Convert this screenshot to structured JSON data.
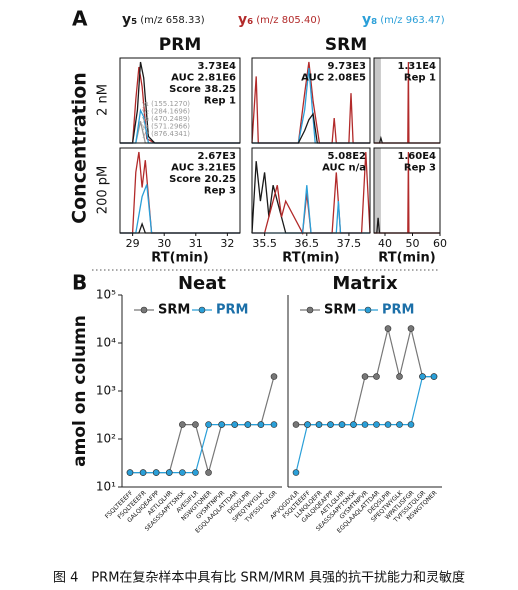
{
  "figure": {
    "panel_a": "A",
    "panel_b": "B",
    "ions": [
      {
        "ion": "y₅",
        "mz": "(m/z 658.33)",
        "color": "#1a1a1a"
      },
      {
        "ion": "y₆",
        "mz": "(m/z 805.40)",
        "color": "#b22a2a"
      },
      {
        "ion": "y₈",
        "mz": "(m/z 963.47)",
        "color": "#2a9fd8"
      }
    ],
    "col_prm": "PRM",
    "col_srm": "SRM",
    "ylabel": "Concentration",
    "row_1": "2 nM",
    "row_2": "200 pM",
    "caption": "图 4　PRM在复杂样本中具有比 SRM/MRM 具强的抗干扰能力和灵敏度"
  },
  "chart_data": [
    {
      "type": "chromatogram",
      "xlim": [
        28.6,
        32.4
      ],
      "ylim": [
        0,
        37300
      ],
      "annotations": [
        "3.73E4",
        "AUC 2.81E6",
        "Score 38.25",
        "Rep 1"
      ],
      "ion_list": [
        "y₁ (155.1270)",
        "y₂ (284.1696)",
        "y₃ (470.2489)",
        "y₄ (571.2966)",
        "y₇ (876.4341)"
      ],
      "series": [
        {
          "color": "#999999",
          "x": [
            28.6,
            29.1,
            29.25,
            29.4,
            32.4
          ],
          "values": [
            0,
            0,
            10000,
            0,
            0
          ]
        },
        {
          "color": "#b22a2a",
          "x": [
            28.6,
            29.0,
            29.1,
            29.2,
            29.3,
            29.45,
            29.7,
            32.4
          ],
          "values": [
            0,
            0,
            20000,
            35000,
            26000,
            2000,
            0,
            0
          ]
        },
        {
          "color": "#1a1a1a",
          "x": [
            28.6,
            29.0,
            29.15,
            29.25,
            29.35,
            29.5,
            29.7,
            32.4
          ],
          "values": [
            0,
            0,
            15000,
            37300,
            30000,
            3000,
            0,
            0
          ]
        },
        {
          "color": "#2a9fd8",
          "x": [
            28.6,
            29.1,
            29.25,
            29.35,
            29.5,
            32.4
          ],
          "values": [
            0,
            0,
            15000,
            12000,
            0,
            0
          ]
        }
      ]
    },
    {
      "type": "chromatogram",
      "xlim": [
        28.6,
        32.4
      ],
      "ylim": [
        0,
        2670
      ],
      "xticks": [
        29,
        30,
        31,
        32
      ],
      "xlabel": "RT(min)",
      "annotations": [
        "2.67E3",
        "AUC 3.21E5",
        "Score 20.25",
        "Rep 3"
      ],
      "series": [
        {
          "color": "#b22a2a",
          "x": [
            28.6,
            29.0,
            29.1,
            29.2,
            29.3,
            29.4,
            29.6,
            32.4
          ],
          "values": [
            0,
            0,
            2000,
            2670,
            1500,
            2400,
            0,
            0
          ]
        },
        {
          "color": "#1a1a1a",
          "x": [
            28.6,
            29.2,
            29.3,
            29.4,
            32.4
          ],
          "values": [
            0,
            0,
            300,
            0,
            0
          ]
        },
        {
          "color": "#2a9fd8",
          "x": [
            28.6,
            29.1,
            29.3,
            29.45,
            29.6,
            32.4
          ],
          "values": [
            0,
            0,
            1200,
            1600,
            0,
            0
          ]
        }
      ]
    },
    {
      "type": "chromatogram",
      "xlim": [
        35.2,
        38.0
      ],
      "ylim": [
        0,
        9730
      ],
      "annotations": [
        "9.73E3",
        "AUC 2.08E5"
      ],
      "series": [
        {
          "color": "#b22a2a",
          "x": [
            35.2,
            35.3,
            35.35,
            35.5,
            36.3,
            36.45,
            36.55,
            36.65,
            36.8,
            37.1,
            37.15,
            37.2,
            37.5,
            37.55,
            37.6,
            38.0
          ],
          "values": [
            0,
            8000,
            0,
            0,
            0,
            6000,
            9730,
            5000,
            0,
            0,
            3000,
            0,
            0,
            6000,
            0,
            0
          ]
        },
        {
          "color": "#2a9fd8",
          "x": [
            35.2,
            36.3,
            36.45,
            36.55,
            36.7,
            38.0
          ],
          "values": [
            0,
            0,
            4000,
            9000,
            0,
            0
          ]
        },
        {
          "color": "#1a1a1a",
          "x": [
            35.2,
            36.3,
            36.45,
            36.55,
            36.65,
            36.75,
            38.0
          ],
          "values": [
            0,
            0,
            1500,
            2800,
            3500,
            0,
            0
          ]
        }
      ]
    },
    {
      "type": "chromatogram",
      "xlim": [
        36,
        60
      ],
      "ylim": [
        0,
        13100
      ],
      "highlight_x": [
        36,
        38.5
      ],
      "annotations": [
        "1.31E4",
        "Rep 1"
      ],
      "series": [
        {
          "color": "#1a1a1a",
          "x": [
            36,
            38,
            38.5,
            39,
            60
          ],
          "values": [
            0,
            0,
            800,
            0,
            0
          ]
        },
        {
          "color": "#b22a2a",
          "x": [
            36,
            48.3,
            48.5,
            48.7,
            60
          ],
          "values": [
            0,
            0,
            13100,
            0,
            0
          ]
        }
      ]
    },
    {
      "type": "chromatogram",
      "xlim": [
        35.2,
        38.0
      ],
      "ylim": [
        0,
        508
      ],
      "xticks": [
        35.5,
        36.5,
        37.5
      ],
      "xlabel": "RT(min)",
      "annotations": [
        "5.08E2",
        "AUC n/a"
      ],
      "series": [
        {
          "color": "#1a1a1a",
          "x": [
            35.2,
            35.3,
            35.4,
            35.5,
            35.6,
            35.7,
            36.0,
            38.0
          ],
          "values": [
            0,
            450,
            200,
            380,
            100,
            300,
            0,
            0
          ]
        },
        {
          "color": "#b22a2a",
          "x": [
            35.2,
            35.5,
            35.8,
            35.9,
            36.0,
            36.4,
            36.5,
            36.6,
            37.1,
            37.2,
            37.3,
            37.8,
            37.9,
            38.0
          ],
          "values": [
            0,
            0,
            300,
            100,
            200,
            0,
            250,
            0,
            0,
            380,
            0,
            0,
            508,
            0
          ]
        },
        {
          "color": "#2a9fd8",
          "x": [
            35.2,
            36.4,
            36.5,
            36.6,
            37.2,
            37.25,
            37.3,
            38.0
          ],
          "values": [
            0,
            0,
            300,
            0,
            0,
            200,
            0,
            0
          ]
        }
      ]
    },
    {
      "type": "chromatogram",
      "xlim": [
        36,
        60
      ],
      "ylim": [
        0,
        16000
      ],
      "xticks": [
        40,
        50,
        60
      ],
      "xlabel": "RT(min)",
      "highlight_x": [
        36,
        38.5
      ],
      "annotations": [
        "1.60E4",
        "Rep 3"
      ],
      "series": [
        {
          "color": "#1a1a1a",
          "x": [
            36,
            37,
            37.5,
            38,
            60
          ],
          "values": [
            0,
            0,
            3000,
            0,
            0
          ]
        },
        {
          "color": "#b22a2a",
          "x": [
            36,
            48.3,
            48.5,
            48.7,
            60
          ],
          "values": [
            0,
            0,
            16000,
            0,
            0
          ]
        }
      ]
    },
    {
      "type": "line",
      "title": "Neat",
      "log_y": true,
      "ylabel": "amol on column",
      "ylim": [
        10,
        100000
      ],
      "yticks": [
        {
          "value": 10,
          "label": "10¹"
        },
        {
          "value": 100,
          "label": "10²"
        },
        {
          "value": 1000,
          "label": "10³"
        },
        {
          "value": 10000,
          "label": "10⁴"
        },
        {
          "value": 100000,
          "label": "10⁵"
        }
      ],
      "categories": [
        "FSQLTEEEFF",
        "FSQLTEEEFR",
        "GALQIQEAFPP",
        "AETLQLHR",
        "SEASSSAPFTSNSK",
        "AVESIFLR",
        "NSWGTQNER",
        "GYSMTNPVR",
        "EGQLAAQLATTDAR",
        "DEQSLPIR",
        "SPEQTWYGLK",
        "TVFSSLTQLGR"
      ],
      "series": [
        {
          "name": "SRM",
          "color": "#777777",
          "values": [
            20,
            20,
            20,
            20,
            200,
            200,
            20,
            200,
            200,
            200,
            200,
            2000
          ]
        },
        {
          "name": "PRM",
          "color": "#2a9fd8",
          "values": [
            20,
            20,
            20,
            20,
            20,
            20,
            200,
            200,
            200,
            200,
            200,
            200
          ]
        }
      ]
    },
    {
      "type": "line",
      "title": "Matrix",
      "log_y": true,
      "ylim": [
        10,
        100000
      ],
      "categories": [
        "APVQGDVLR",
        "FSQLTEEEFF",
        "LLNQLQEFR",
        "GALQIQEAFPP",
        "AETLQLHR",
        "SEASSSAPFTSNSK",
        "GYSMTNPVR",
        "EGQLAAQLATTDAR",
        "DEQSLPIR",
        "SPEQTWYGLK",
        "WPATLISFGR",
        "TVFSSLTQLGR",
        "NSWGTQNER"
      ],
      "series": [
        {
          "name": "SRM",
          "color": "#777777",
          "values": [
            200,
            200,
            200,
            200,
            200,
            200,
            2000,
            2000,
            20000,
            2000,
            20000,
            2000,
            2000
          ]
        },
        {
          "name": "PRM",
          "color": "#2a9fd8",
          "values": [
            20,
            200,
            200,
            200,
            200,
            200,
            200,
            200,
            200,
            200,
            200,
            2000,
            2000
          ]
        }
      ]
    }
  ]
}
